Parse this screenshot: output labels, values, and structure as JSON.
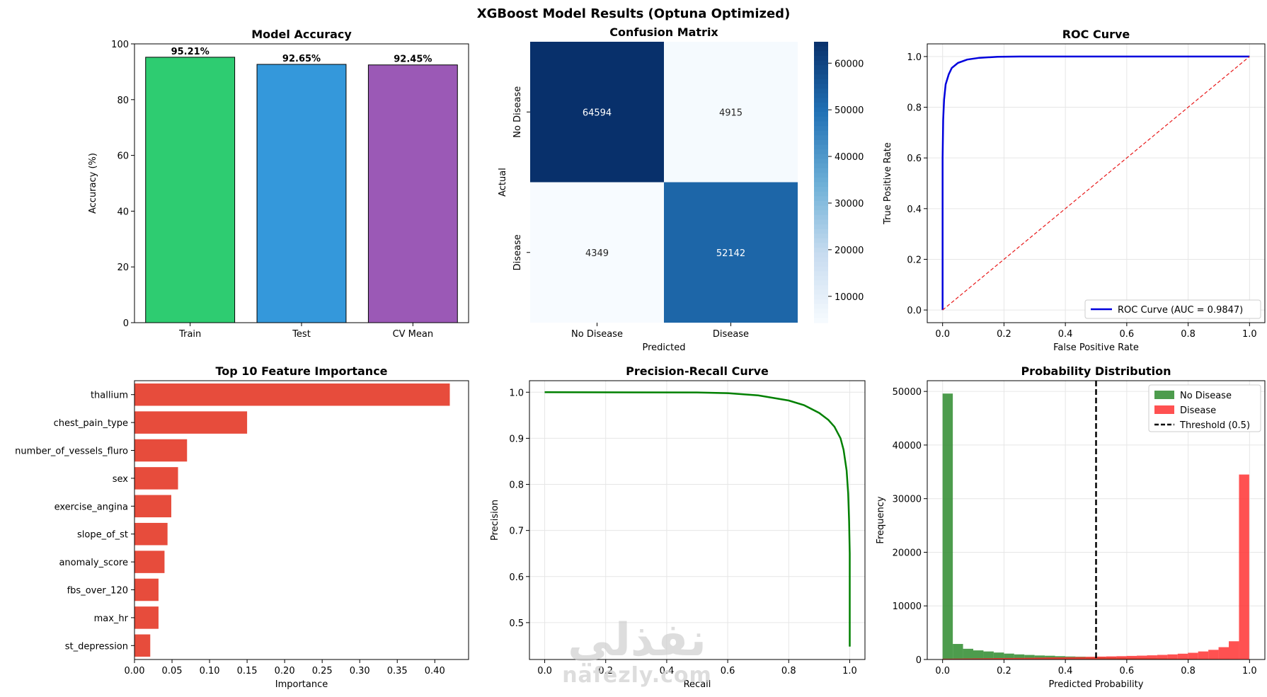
{
  "suptitle": "XGBoost Model Results (Optuna Optimized)",
  "colors": {
    "green": "#2ecc71",
    "blue": "#3498db",
    "purple": "#9b59b6",
    "red": "#e74c3c",
    "roc": "#0000dd",
    "pr": "#008000"
  },
  "watermark": {
    "arabic": "نفذلي",
    "latin": "nafezly.com"
  },
  "chart_data": [
    {
      "id": "accuracy",
      "type": "bar",
      "title": "Model Accuracy",
      "xlabel": "",
      "ylabel": "Accuracy (%)",
      "categories": [
        "Train",
        "Test",
        "CV Mean"
      ],
      "values": [
        95.21,
        92.65,
        92.45
      ],
      "value_labels": [
        "95.21%",
        "92.65%",
        "92.45%"
      ],
      "bar_colors": [
        "#2ecc71",
        "#3498db",
        "#9b59b6"
      ],
      "ylim": [
        0,
        100
      ],
      "yticks": [
        "0",
        "20",
        "40",
        "60",
        "80",
        "100"
      ],
      "grid": false
    },
    {
      "id": "confusion",
      "type": "heatmap",
      "title": "Confusion Matrix",
      "xlabel": "Predicted",
      "ylabel": "Actual",
      "xticklabels": [
        "No Disease",
        "Disease"
      ],
      "yticklabels": [
        "No Disease",
        "Disease"
      ],
      "matrix": [
        [
          64594,
          4915
        ],
        [
          4349,
          52142
        ]
      ],
      "colorbar_ticks": [
        "10000",
        "20000",
        "30000",
        "40000",
        "50000",
        "60000"
      ],
      "colormap": "Blues"
    },
    {
      "id": "roc",
      "type": "line",
      "title": "ROC Curve",
      "xlabel": "False Positive Rate",
      "ylabel": "True Positive Rate",
      "xlim": [
        0,
        1
      ],
      "ylim": [
        0,
        1
      ],
      "xticks": [
        "0.0",
        "0.2",
        "0.4",
        "0.6",
        "0.8",
        "1.0"
      ],
      "yticks": [
        "0.0",
        "0.2",
        "0.4",
        "0.6",
        "0.8",
        "1.0"
      ],
      "grid": true,
      "legend": "lower-right",
      "series": [
        {
          "name": "ROC Curve (AUC = 0.9847)",
          "color": "#0000dd",
          "x": [
            0,
            0,
            0.002,
            0.005,
            0.01,
            0.02,
            0.03,
            0.05,
            0.08,
            0.12,
            0.18,
            0.25,
            0.4,
            0.6,
            0.8,
            1.0
          ],
          "y": [
            0,
            0.6,
            0.75,
            0.83,
            0.89,
            0.93,
            0.955,
            0.975,
            0.988,
            0.995,
            0.999,
            1.0,
            1.0,
            1.0,
            1.0,
            1.0
          ]
        },
        {
          "color": "#e8191a",
          "dashed": true,
          "x": [
            0,
            1
          ],
          "y": [
            0,
            1
          ]
        }
      ]
    },
    {
      "id": "importance",
      "type": "bar",
      "orientation": "horizontal",
      "title": "Top 10 Feature Importance",
      "xlabel": "Importance",
      "ylabel": "",
      "categories": [
        "thallium",
        "chest_pain_type",
        "number_of_vessels_fluro",
        "sex",
        "exercise_angina",
        "slope_of_st",
        "anomaly_score",
        "fbs_over_120",
        "max_hr",
        "st_depression"
      ],
      "values": [
        0.42,
        0.15,
        0.07,
        0.058,
        0.049,
        0.044,
        0.04,
        0.032,
        0.032,
        0.021
      ],
      "xlim": [
        0,
        0.445
      ],
      "xticks": [
        "0.00",
        "0.05",
        "0.10",
        "0.15",
        "0.20",
        "0.25",
        "0.30",
        "0.35",
        "0.40"
      ],
      "bar_color": "#e74c3c",
      "grid": false
    },
    {
      "id": "pr",
      "type": "line",
      "title": "Precision-Recall Curve",
      "xlabel": "Recall",
      "ylabel": "Precision",
      "xlim": [
        -0.05,
        1.05
      ],
      "ylim": [
        0.42,
        1.025
      ],
      "xticks": [
        "0.0",
        "0.2",
        "0.4",
        "0.6",
        "0.8",
        "1.0"
      ],
      "yticks": [
        "0.5",
        "0.6",
        "0.7",
        "0.8",
        "0.9",
        "1.0"
      ],
      "grid": true,
      "series": [
        {
          "color": "#008000",
          "x": [
            0,
            0.5,
            0.6,
            0.7,
            0.8,
            0.85,
            0.9,
            0.93,
            0.95,
            0.97,
            0.98,
            0.99,
            0.995,
            0.998,
            1.0,
            1.0,
            1.0
          ],
          "y": [
            1.0,
            0.9995,
            0.998,
            0.993,
            0.982,
            0.972,
            0.955,
            0.94,
            0.925,
            0.9,
            0.875,
            0.83,
            0.78,
            0.72,
            0.65,
            0.55,
            0.448
          ]
        }
      ]
    },
    {
      "id": "probdist",
      "type": "bar",
      "title": "Probability Distribution",
      "xlabel": "Predicted Probability",
      "ylabel": "Frequency",
      "xlim": [
        -0.05,
        1.05
      ],
      "ylim": [
        0,
        52000
      ],
      "xticks": [
        "0.0",
        "0.2",
        "0.4",
        "0.6",
        "0.8",
        "1.0"
      ],
      "yticks": [
        "0",
        "10000",
        "20000",
        "30000",
        "40000",
        "50000"
      ],
      "grid": true,
      "legend": "top-right",
      "bin_edges_start": 0.0,
      "bin_width": 0.0333,
      "series": [
        {
          "name": "No Disease",
          "color": "#2e8b2e",
          "values": [
            49600,
            2900,
            2000,
            1700,
            1500,
            1300,
            1100,
            950,
            850,
            750,
            700,
            620,
            560,
            520,
            470,
            430,
            390,
            350,
            310,
            280,
            250,
            220,
            190,
            170,
            150,
            130,
            110,
            95,
            80,
            70
          ]
        },
        {
          "name": "Disease",
          "color": "#ff3333",
          "values": [
            150,
            170,
            190,
            210,
            230,
            260,
            280,
            300,
            320,
            350,
            380,
            400,
            430,
            460,
            500,
            540,
            580,
            620,
            670,
            720,
            780,
            860,
            950,
            1080,
            1250,
            1500,
            1800,
            2300,
            3400,
            34500
          ]
        }
      ],
      "threshold": {
        "label": "Threshold (0.5)",
        "x": 0.5
      }
    }
  ]
}
